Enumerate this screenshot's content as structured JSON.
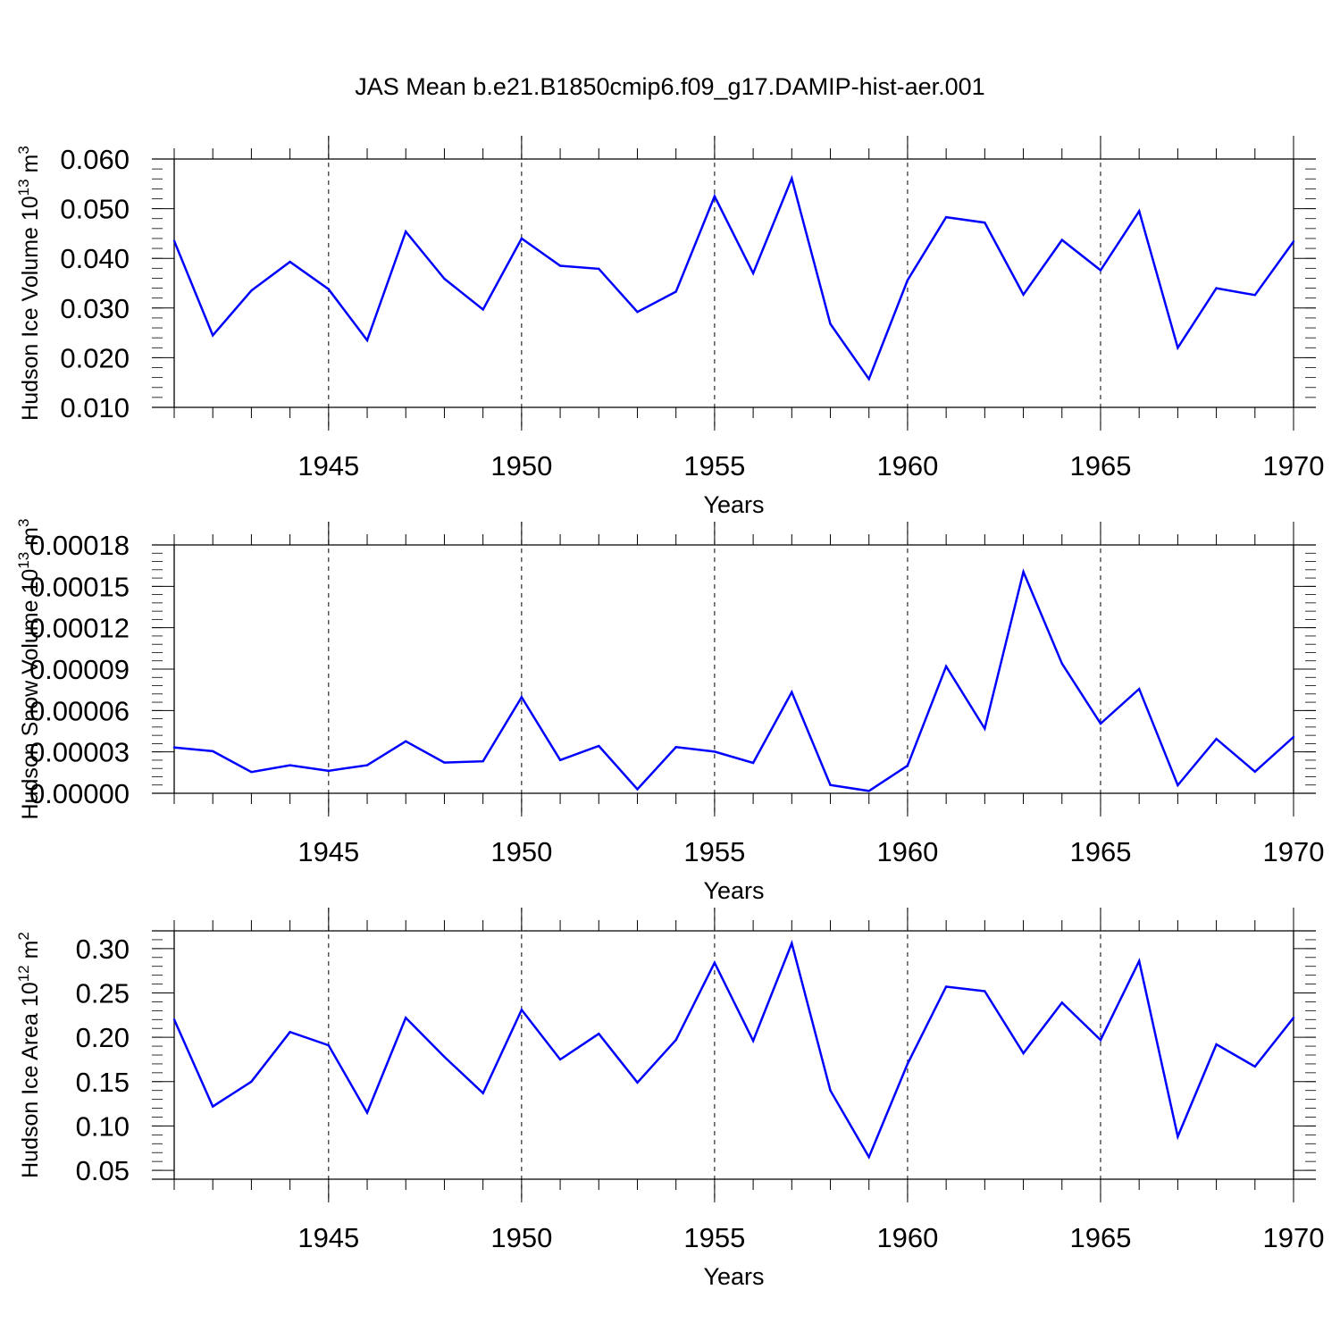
{
  "title": "JAS Mean b.e21.B1850cmip6.f09_g17.DAMIP-hist-aer.001",
  "colors": {
    "series": "#0000ff",
    "axis": "#000000",
    "grid": "#000000"
  },
  "chart_data": [
    {
      "type": "line",
      "ylabel": "Hudson Ice Volume 10",
      "ylabel_sup": "13",
      "ylabel_unit": " m",
      "ylabel_unit_sup": "3",
      "xlabel": "Years",
      "xlim": [
        1941,
        1970
      ],
      "ylim": [
        0.01,
        0.06
      ],
      "yticks": [
        0.01,
        0.02,
        0.03,
        0.04,
        0.05,
        0.06
      ],
      "yticklabels": [
        "0.010",
        "0.020",
        "0.030",
        "0.040",
        "0.050",
        "0.060"
      ],
      "xticks": [
        1945,
        1950,
        1955,
        1960,
        1965,
        1970
      ],
      "xticklabels": [
        "1945",
        "1950",
        "1955",
        "1960",
        "1965",
        "1970"
      ],
      "grid_x": [
        1945,
        1950,
        1955,
        1960,
        1965
      ],
      "x": [
        1941,
        1942,
        1943,
        1944,
        1945,
        1946,
        1947,
        1948,
        1949,
        1950,
        1951,
        1952,
        1953,
        1954,
        1955,
        1956,
        1957,
        1958,
        1959,
        1960,
        1961,
        1962,
        1963,
        1964,
        1965,
        1966,
        1967,
        1968,
        1969,
        1970
      ],
      "values": [
        0.0435,
        0.0245,
        0.0335,
        0.0393,
        0.0338,
        0.0235,
        0.0454,
        0.0359,
        0.0297,
        0.044,
        0.0385,
        0.0379,
        0.0292,
        0.0333,
        0.0525,
        0.037,
        0.0561,
        0.0268,
        0.0157,
        0.0356,
        0.0483,
        0.0472,
        0.0327,
        0.0437,
        0.0376,
        0.0495,
        0.022,
        0.034,
        0.0326,
        0.0434
      ]
    },
    {
      "type": "line",
      "ylabel": "Hudson Snow Volume 10",
      "ylabel_sup": "13",
      "ylabel_unit": " m",
      "ylabel_unit_sup": "3",
      "xlabel": "Years",
      "xlim": [
        1941,
        1970
      ],
      "ylim": [
        0.0,
        0.00018
      ],
      "yticks": [
        0.0,
        3e-05,
        6e-05,
        9e-05,
        0.00012,
        0.00015,
        0.00018
      ],
      "yticklabels": [
        "0.00000",
        "0.00003",
        "0.00006",
        "0.00009",
        "0.00012",
        "0.00015",
        "0.00018"
      ],
      "xticks": [
        1945,
        1950,
        1955,
        1960,
        1965,
        1970
      ],
      "xticklabels": [
        "1945",
        "1950",
        "1955",
        "1960",
        "1965",
        "1970"
      ],
      "grid_x": [
        1945,
        1950,
        1955,
        1960,
        1965
      ],
      "x": [
        1941,
        1942,
        1943,
        1944,
        1945,
        1946,
        1947,
        1948,
        1949,
        1950,
        1951,
        1952,
        1953,
        1954,
        1955,
        1956,
        1957,
        1958,
        1959,
        1960,
        1961,
        1962,
        1963,
        1964,
        1965,
        1966,
        1967,
        1968,
        1969,
        1970
      ],
      "values": [
        3.32e-05,
        3.05e-05,
        1.54e-05,
        2.03e-05,
        1.63e-05,
        2.03e-05,
        3.77e-05,
        2.23e-05,
        2.32e-05,
        6.97e-05,
        2.41e-05,
        3.43e-05,
        2.9e-06,
        3.35e-05,
        3.02e-05,
        2.2e-05,
        7.33e-05,
        6e-06,
        1.7e-06,
        2e-05,
        9.2e-05,
        4.69e-05,
        0.0001605,
        9.4e-05,
        5.05e-05,
        7.56e-05,
        5.8e-06,
        3.94e-05,
        1.57e-05,
        4.08e-05
      ]
    },
    {
      "type": "line",
      "ylabel": "Hudson Ice Area 10",
      "ylabel_sup": "12",
      "ylabel_unit": " m",
      "ylabel_unit_sup": "2",
      "xlabel": "Years",
      "xlim": [
        1941,
        1970
      ],
      "ylim": [
        0.04,
        0.32
      ],
      "yticks": [
        0.05,
        0.1,
        0.15,
        0.2,
        0.25,
        0.3
      ],
      "yticklabels": [
        "0.05",
        "0.10",
        "0.15",
        "0.20",
        "0.25",
        "0.30"
      ],
      "xticks": [
        1945,
        1950,
        1955,
        1960,
        1965,
        1970
      ],
      "xticklabels": [
        "1945",
        "1950",
        "1955",
        "1960",
        "1965",
        "1970"
      ],
      "grid_x": [
        1945,
        1950,
        1955,
        1960,
        1965
      ],
      "x": [
        1941,
        1942,
        1943,
        1944,
        1945,
        1946,
        1947,
        1948,
        1949,
        1950,
        1951,
        1952,
        1953,
        1954,
        1955,
        1956,
        1957,
        1958,
        1959,
        1960,
        1961,
        1962,
        1963,
        1964,
        1965,
        1966,
        1967,
        1968,
        1969,
        1970
      ],
      "values": [
        0.22,
        0.122,
        0.15,
        0.206,
        0.191,
        0.115,
        0.222,
        0.178,
        0.137,
        0.231,
        0.175,
        0.204,
        0.149,
        0.197,
        0.284,
        0.196,
        0.306,
        0.14,
        0.065,
        0.17,
        0.257,
        0.252,
        0.182,
        0.239,
        0.197,
        0.286,
        0.088,
        0.192,
        0.167,
        0.222
      ]
    }
  ]
}
